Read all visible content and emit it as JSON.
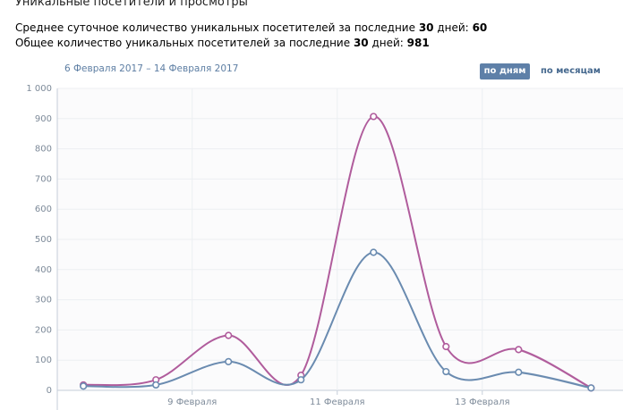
{
  "header": {
    "title": "Уникальные посетители и просмотры"
  },
  "stats": [
    {
      "text": "Среднее суточное количество уникальных посетителей за последние",
      "days": "30",
      "unit": "дней:",
      "value": 60
    },
    {
      "text": "Общее количество уникальных посетителей за последние",
      "days": "30",
      "unit": "дней:",
      "value": 981
    }
  ],
  "period": "6 Февраля 2017 – 14 Февраля 2017",
  "buttons": [
    "по дням",
    "по месяцам"
  ],
  "chart_data": {
    "type": "line",
    "x": [
      7.5,
      8.5,
      9.5,
      10.5,
      11.5,
      12.5,
      13.5,
      14.5
    ],
    "series": [
      {
        "color": "#b05c9c",
        "values": [
          18,
          35,
          182,
          50,
          907,
          145,
          135,
          8
        ]
      },
      {
        "color": "#6a8bb0",
        "values": [
          14,
          18,
          95,
          35,
          457,
          62,
          60,
          8
        ]
      }
    ],
    "xlim": [
      7.14,
      14.94
    ],
    "xticks": [
      {
        "value": 9,
        "label": "9 Февраля"
      },
      {
        "value": 11,
        "label": "11 Февраля"
      },
      {
        "value": 13,
        "label": "13 Февраля"
      }
    ],
    "ylim": [
      0,
      1000
    ],
    "yticks": [
      0,
      100,
      200,
      300,
      400,
      500,
      600,
      700,
      800,
      900,
      {
        "value": 1000,
        "label": "1 000"
      }
    ],
    "grid": true
  }
}
